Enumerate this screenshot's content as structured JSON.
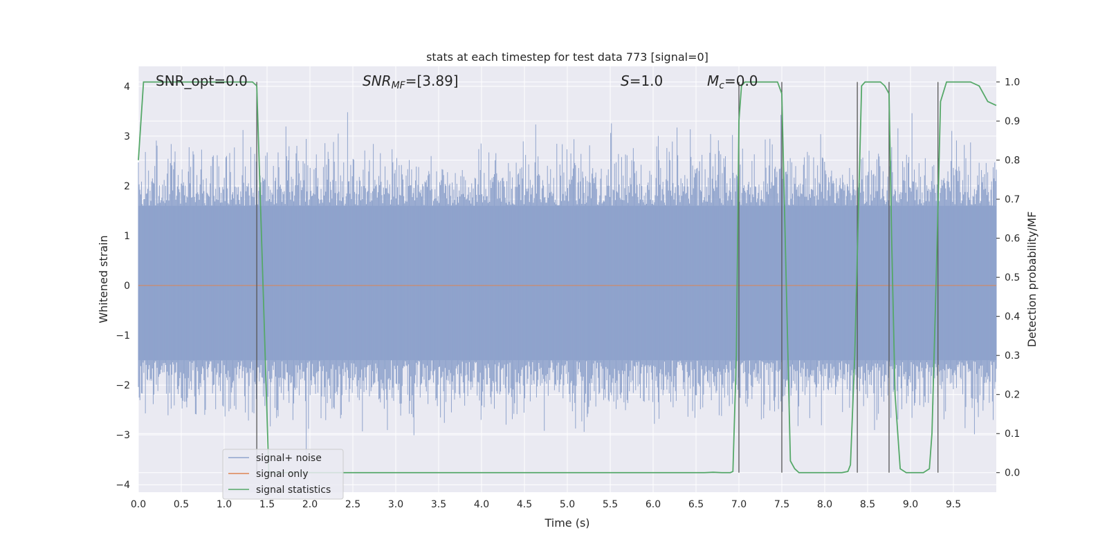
{
  "chart_data": {
    "type": "line",
    "title": "stats at each timestep for test data 773 [signal=0]",
    "xlabel": "Time (s)",
    "ylabel": "Whitened strain",
    "y2label": "Detection probability/MF",
    "xlim": [
      0,
      10
    ],
    "ylim": [
      -4.15,
      4.4
    ],
    "y2lim": [
      -0.05,
      1.04
    ],
    "xticks": [
      "0.0",
      "0.5",
      "1.0",
      "1.5",
      "2.0",
      "2.5",
      "3.0",
      "3.5",
      "4.0",
      "4.5",
      "5.0",
      "5.5",
      "6.0",
      "6.5",
      "7.0",
      "7.5",
      "8.0",
      "8.5",
      "9.0",
      "9.5"
    ],
    "yticks": [
      "4",
      "3",
      "2",
      "1",
      "0",
      "−1",
      "−2",
      "−3",
      "−4"
    ],
    "y2ticks": [
      "1.0",
      "0.9",
      "0.8",
      "0.7",
      "0.6",
      "0.5",
      "0.4",
      "0.3",
      "0.2",
      "0.1",
      "0.0"
    ],
    "grid": true,
    "legend_position": "lower-left",
    "annotations": {
      "snr_opt": "SNR_opt=0.0",
      "snr_mf_base": "SNR",
      "snr_mf_sub": "MF",
      "snr_mf_value": "=[3.89]",
      "s_label": "S",
      "s_value": "=1.0",
      "mc_base": "M",
      "mc_sub": "c",
      "mc_value": "=0.0"
    },
    "series": [
      {
        "name": "signal+ noise",
        "color": "#8fa3cc",
        "kind": "noise",
        "range": [
          -3.7,
          3.7
        ],
        "core": [
          -1.5,
          1.6
        ]
      },
      {
        "name": "signal only",
        "color": "#dd8452",
        "kind": "constant",
        "value": 0
      },
      {
        "name": "signal statistics",
        "color": "#55a868",
        "axis": "right",
        "x": [
          0.0,
          0.06,
          0.1,
          0.2,
          0.5,
          1.0,
          1.3,
          1.33,
          1.38,
          1.45,
          1.52,
          1.58,
          2.0,
          3.0,
          4.0,
          5.0,
          6.0,
          6.5,
          6.6,
          6.7,
          6.8,
          6.9,
          6.93,
          6.97,
          7.0,
          7.03,
          7.07,
          7.1,
          7.2,
          7.3,
          7.45,
          7.5,
          7.55,
          7.6,
          7.65,
          7.7,
          7.8,
          8.0,
          8.2,
          8.27,
          8.3,
          8.35,
          8.43,
          8.47,
          8.55,
          8.65,
          8.7,
          8.75,
          8.78,
          8.82,
          8.88,
          8.95,
          9.0,
          9.1,
          9.15,
          9.22,
          9.25,
          9.3,
          9.35,
          9.42,
          9.45,
          9.5,
          9.6,
          9.7,
          9.8,
          9.9,
          10.0
        ],
        "y": [
          0.8,
          1.0,
          1.0,
          1.0,
          1.0,
          1.0,
          1.0,
          1.0,
          0.99,
          0.5,
          0.0,
          0.0,
          0.0,
          0.0,
          0.0,
          0.0,
          0.0,
          0.0,
          0.0,
          0.001,
          0.0,
          0.0,
          0.003,
          0.3,
          0.9,
          0.99,
          1.0,
          1.0,
          1.0,
          1.0,
          1.0,
          0.97,
          0.5,
          0.03,
          0.01,
          0.0,
          0.0,
          0.0,
          0.0,
          0.003,
          0.02,
          0.3,
          0.99,
          1.0,
          1.0,
          1.0,
          0.99,
          0.97,
          0.6,
          0.2,
          0.01,
          0.0,
          0.0,
          0.0,
          0.0,
          0.01,
          0.1,
          0.5,
          0.95,
          1.0,
          1.0,
          1.0,
          1.0,
          1.0,
          0.99,
          0.95,
          0.94
        ]
      }
    ],
    "vlines": [
      1.38,
      7.0,
      7.5,
      8.38,
      8.75,
      9.32
    ]
  }
}
